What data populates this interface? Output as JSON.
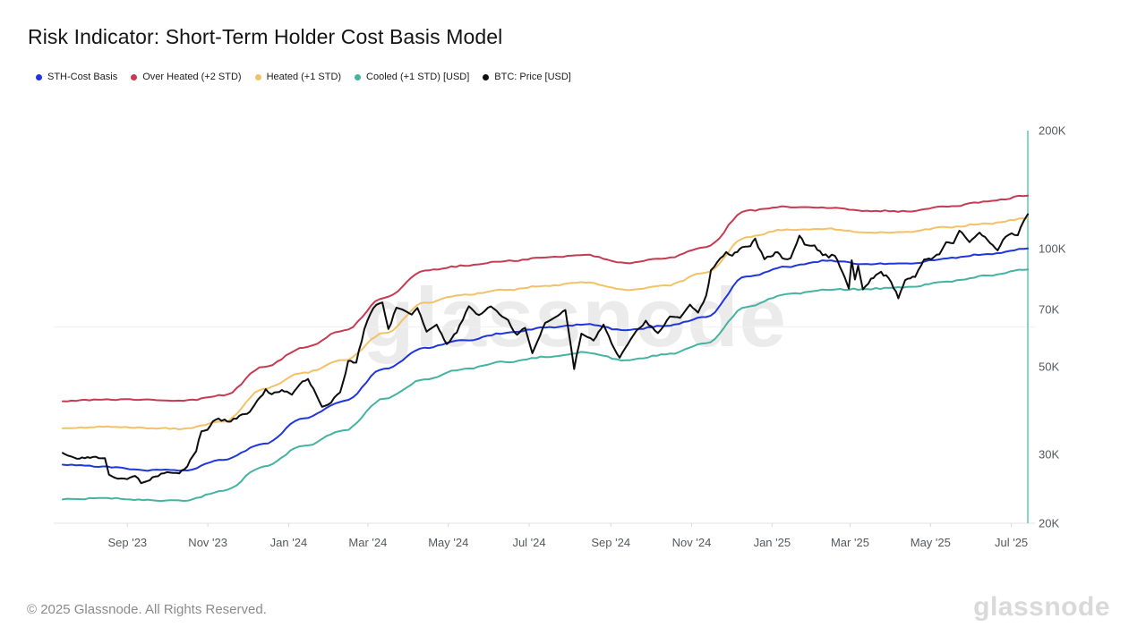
{
  "title": "Risk Indicator: Short-Term Holder Cost Basis Model",
  "watermark": "glassnode",
  "footer": {
    "copyright": "© 2025 Glassnode. All Rights Reserved.",
    "brand": "glassnode"
  },
  "legend": [
    {
      "label": "STH-Cost Basis",
      "color": "#2036dd"
    },
    {
      "label": "Over Heated (+2 STD)",
      "color": "#c43b52"
    },
    {
      "label": "Heated (+1 STD)",
      "color": "#f3c268"
    },
    {
      "label": "Cooled (+1 STD) [USD]",
      "color": "#45b2a2"
    },
    {
      "label": "BTC: Price [USD]",
      "color": "#0d0d0d"
    }
  ],
  "chart_data": {
    "type": "line",
    "y_scale": "log",
    "ylim": [
      20000,
      200000
    ],
    "x_unit": "months since 2023-07-14 (span Jul '23 - Jul '25)",
    "xlim": [
      0,
      24
    ],
    "grid": "single faint horizontal line at 63200 USD (axis midpoint)",
    "midline_value": 63200,
    "right_edge_marker_color": "#8ad2c6",
    "y_ticks": [
      {
        "v": 200000,
        "label": "200K"
      },
      {
        "v": 100000,
        "label": "100K"
      },
      {
        "v": 70000,
        "label": "70K"
      },
      {
        "v": 50000,
        "label": "50K"
      },
      {
        "v": 30000,
        "label": "30K"
      },
      {
        "v": 20000,
        "label": "20K"
      }
    ],
    "x_ticks": [
      {
        "t": 1.61,
        "label": "Sep '23"
      },
      {
        "t": 3.61,
        "label": "Nov '23"
      },
      {
        "t": 5.62,
        "label": "Jan '24"
      },
      {
        "t": 7.59,
        "label": "Mar '24"
      },
      {
        "t": 9.59,
        "label": "May '24"
      },
      {
        "t": 11.6,
        "label": "Jul '24"
      },
      {
        "t": 13.63,
        "label": "Sep '24"
      },
      {
        "t": 15.64,
        "label": "Nov '24"
      },
      {
        "t": 17.64,
        "label": "Jan '25"
      },
      {
        "t": 19.58,
        "label": "Mar '25"
      },
      {
        "t": 21.58,
        "label": "May '25"
      },
      {
        "t": 23.59,
        "label": "Jul '25"
      }
    ],
    "band_t": [
      0,
      1,
      2,
      3,
      4,
      5,
      6,
      7,
      8,
      9,
      10,
      11,
      12,
      13,
      14,
      15,
      16,
      17,
      18,
      19,
      20,
      21,
      22,
      23,
      24
    ],
    "series": [
      {
        "name": "Over Heated (+2 STD)",
        "color": "#c43b52",
        "kind": "band",
        "values_kusd": [
          40.9,
          41.3,
          41.3,
          41.0,
          42.3,
          50.0,
          56.0,
          62.0,
          75.0,
          88.0,
          90.5,
          93.0,
          95.0,
          96.5,
          92.0,
          94.5,
          101.0,
          125.0,
          128.0,
          127.0,
          125.0,
          124.5,
          128.0,
          132.0,
          136.5
        ]
      },
      {
        "name": "Heated (+1 STD)",
        "color": "#f3c268",
        "kind": "band",
        "values_kusd": [
          34.9,
          35.2,
          35.0,
          34.8,
          36.3,
          44.0,
          48.4,
          52.0,
          61.0,
          73.0,
          76.5,
          78.5,
          80.5,
          82.0,
          78.6,
          80.7,
          87.0,
          107.0,
          112.0,
          112.5,
          110.0,
          110.5,
          113.5,
          116.0,
          119.5
        ]
      },
      {
        "name": "Cooled (+1 STD) [USD]",
        "color": "#45b2a2",
        "kind": "band",
        "values_kusd": [
          23.0,
          23.2,
          22.9,
          22.8,
          24.2,
          27.9,
          31.5,
          34.5,
          41.5,
          46.5,
          49.5,
          51.5,
          53.0,
          54.5,
          52.0,
          53.8,
          57.5,
          71.0,
          76.7,
          78.6,
          79.0,
          80.0,
          82.5,
          85.5,
          88.5
        ]
      },
      {
        "name": "STH-Cost Basis",
        "color": "#2036dd",
        "kind": "band",
        "values_kusd": [
          28.2,
          27.9,
          27.3,
          27.3,
          29.0,
          31.9,
          37.0,
          41.0,
          49.5,
          56.0,
          58.5,
          61.0,
          63.0,
          64.2,
          62.0,
          63.6,
          67.0,
          85.0,
          90.0,
          93.2,
          91.5,
          91.8,
          94.5,
          97.0,
          100.2
        ]
      },
      {
        "name": "BTC: Price [USD]",
        "color": "#0d0d0d",
        "kind": "price",
        "points_t_kusd": [
          [
            0,
            30.2
          ],
          [
            0.35,
            29.2
          ],
          [
            0.75,
            29.5
          ],
          [
            1.05,
            29.3
          ],
          [
            1.15,
            26.6
          ],
          [
            1.3,
            26.1
          ],
          [
            1.6,
            25.9
          ],
          [
            1.8,
            26.4
          ],
          [
            1.95,
            25.3
          ],
          [
            2.1,
            25.6
          ],
          [
            2.3,
            26.3
          ],
          [
            2.6,
            27.0
          ],
          [
            2.9,
            26.8
          ],
          [
            3.1,
            27.9
          ],
          [
            3.25,
            29.8
          ],
          [
            3.32,
            30.5
          ],
          [
            3.45,
            34.3
          ],
          [
            3.6,
            34.6
          ],
          [
            3.8,
            36.7
          ],
          [
            4.1,
            36.3
          ],
          [
            4.4,
            37.6
          ],
          [
            4.65,
            38.4
          ],
          [
            4.9,
            41.8
          ],
          [
            5.05,
            43.9
          ],
          [
            5.2,
            42.6
          ],
          [
            5.45,
            43.7
          ],
          [
            5.7,
            42.5
          ],
          [
            5.9,
            45.2
          ],
          [
            6.1,
            46.6
          ],
          [
            6.3,
            42.6
          ],
          [
            6.45,
            39.6
          ],
          [
            6.6,
            40.1
          ],
          [
            6.9,
            43.1
          ],
          [
            7.1,
            51.8
          ],
          [
            7.3,
            51.3
          ],
          [
            7.5,
            62.4
          ],
          [
            7.65,
            68.2
          ],
          [
            7.8,
            72.0
          ],
          [
            7.95,
            73.0
          ],
          [
            8.1,
            62.5
          ],
          [
            8.3,
            70.8
          ],
          [
            8.5,
            69.6
          ],
          [
            8.68,
            68.0
          ],
          [
            8.82,
            70.7
          ],
          [
            9.05,
            61.5
          ],
          [
            9.3,
            64.1
          ],
          [
            9.55,
            57.2
          ],
          [
            9.8,
            61.2
          ],
          [
            10.1,
            71.4
          ],
          [
            10.35,
            67.8
          ],
          [
            10.65,
            71.3
          ],
          [
            11.0,
            66.6
          ],
          [
            11.3,
            60.4
          ],
          [
            11.5,
            62.9
          ],
          [
            11.68,
            54.2
          ],
          [
            12.0,
            64.8
          ],
          [
            12.3,
            67.4
          ],
          [
            12.5,
            69.8
          ],
          [
            12.72,
            49.4
          ],
          [
            12.9,
            60.8
          ],
          [
            13.2,
            58.4
          ],
          [
            13.45,
            64.1
          ],
          [
            13.65,
            57.4
          ],
          [
            13.85,
            52.8
          ],
          [
            14.2,
            60.4
          ],
          [
            14.5,
            65.6
          ],
          [
            14.8,
            61.0
          ],
          [
            15.1,
            67.2
          ],
          [
            15.35,
            66.7
          ],
          [
            15.6,
            72.1
          ],
          [
            15.8,
            68.8
          ],
          [
            16.0,
            76.0
          ],
          [
            16.12,
            88.2
          ],
          [
            16.35,
            94.5
          ],
          [
            16.5,
            98.1
          ],
          [
            16.65,
            96.0
          ],
          [
            16.9,
            101.0
          ],
          [
            17.1,
            101.5
          ],
          [
            17.22,
            106.2
          ],
          [
            17.45,
            94.0
          ],
          [
            17.6,
            95.5
          ],
          [
            17.78,
            98.0
          ],
          [
            17.95,
            94.2
          ],
          [
            18.1,
            94.6
          ],
          [
            18.32,
            108.0
          ],
          [
            18.45,
            102.5
          ],
          [
            18.7,
            102.0
          ],
          [
            18.9,
            96.3
          ],
          [
            19.2,
            96.0
          ],
          [
            19.45,
            84.5
          ],
          [
            19.55,
            79.2
          ],
          [
            19.62,
            93.5
          ],
          [
            19.7,
            83.5
          ],
          [
            19.78,
            90.5
          ],
          [
            19.9,
            78.8
          ],
          [
            20.1,
            83.9
          ],
          [
            20.35,
            87.4
          ],
          [
            20.6,
            82.3
          ],
          [
            20.78,
            74.8
          ],
          [
            20.95,
            83.2
          ],
          [
            21.2,
            84.8
          ],
          [
            21.42,
            93.9
          ],
          [
            21.6,
            94.0
          ],
          [
            21.8,
            96.8
          ],
          [
            21.97,
            104.0
          ],
          [
            22.15,
            103.3
          ],
          [
            22.3,
            111.2
          ],
          [
            22.55,
            104.0
          ],
          [
            22.8,
            110.0
          ],
          [
            23.0,
            105.2
          ],
          [
            23.25,
            99.1
          ],
          [
            23.45,
            107.3
          ],
          [
            23.6,
            109.5
          ],
          [
            23.75,
            108.3
          ],
          [
            23.9,
            117.8
          ],
          [
            24.0,
            122.5
          ]
        ]
      }
    ]
  }
}
